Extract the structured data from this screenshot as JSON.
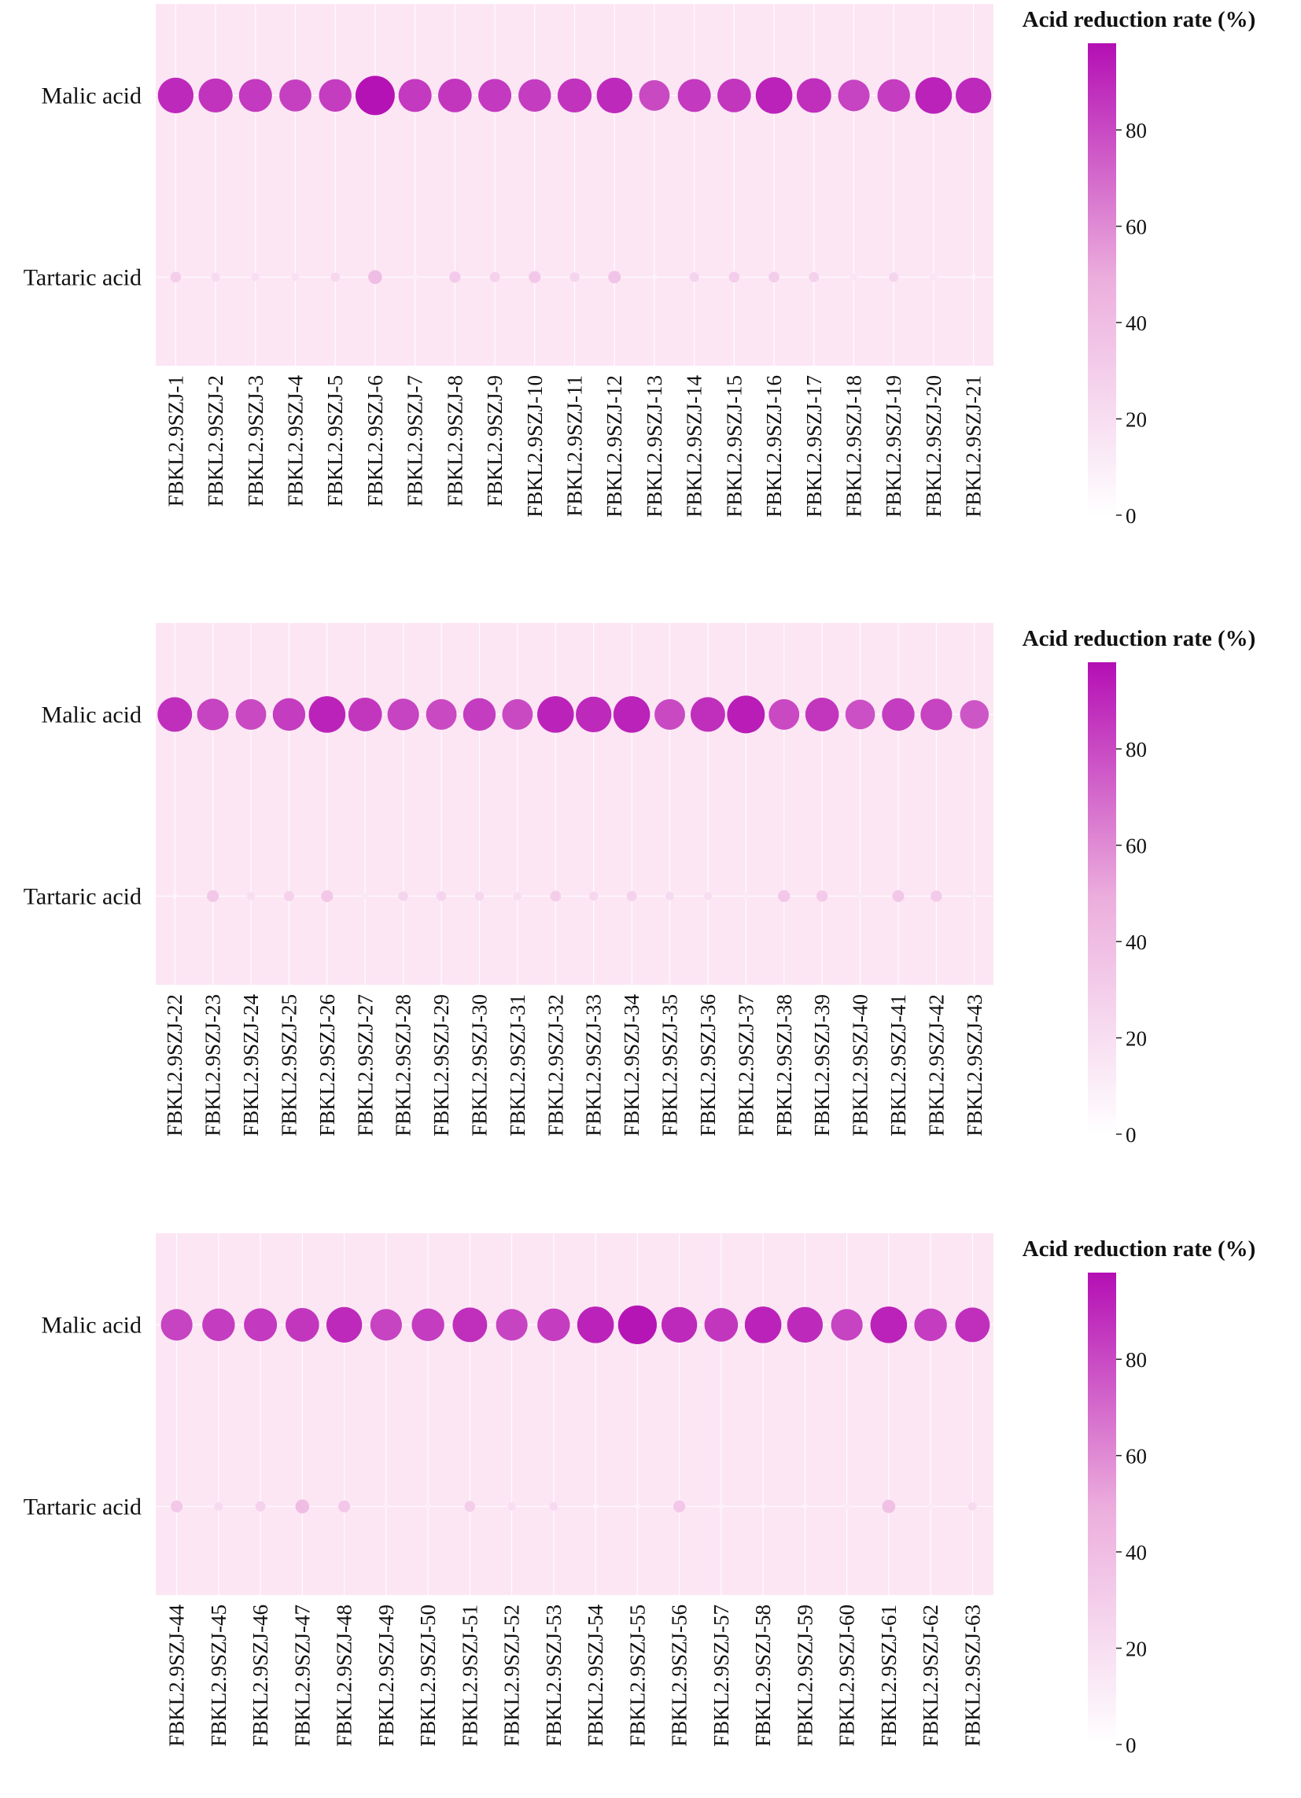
{
  "chart_data": [
    {
      "type": "scatter",
      "categories": [
        "FBKL2.9SZJ-1",
        "FBKL2.9SZJ-2",
        "FBKL2.9SZJ-3",
        "FBKL2.9SZJ-4",
        "FBKL2.9SZJ-5",
        "FBKL2.9SZJ-6",
        "FBKL2.9SZJ-7",
        "FBKL2.9SZJ-8",
        "FBKL2.9SZJ-9",
        "FBKL2.9SZJ-10",
        "FBKL2.9SZJ-11",
        "FBKL2.9SZJ-12",
        "FBKL2.9SZJ-13",
        "FBKL2.9SZJ-14",
        "FBKL2.9SZJ-15",
        "FBKL2.9SZJ-16",
        "FBKL2.9SZJ-17",
        "FBKL2.9SZJ-18",
        "FBKL2.9SZJ-19",
        "FBKL2.9SZJ-20",
        "FBKL2.9SZJ-21"
      ],
      "rows": [
        "Malic acid",
        "Tartaric acid"
      ],
      "series": [
        {
          "name": "Malic acid",
          "values": [
            90,
            87,
            85,
            83,
            84,
            97,
            85,
            86,
            85,
            84,
            87,
            90,
            80,
            85,
            86,
            92,
            88,
            82,
            84,
            92,
            90
          ]
        },
        {
          "name": "Tartaric acid",
          "values": [
            30,
            22,
            20,
            18,
            24,
            40,
            10,
            32,
            28,
            34,
            26,
            36,
            8,
            26,
            30,
            30,
            28,
            16,
            26,
            16,
            6
          ]
        }
      ],
      "colorbar": {
        "label": "Acid reduction rate (%)",
        "ticks": [
          0,
          20,
          40,
          60,
          80
        ],
        "range": [
          0,
          98
        ]
      },
      "colors": {
        "high": "#b40fb4",
        "low": "#ffffff",
        "background": "#fce6f4"
      }
    },
    {
      "type": "scatter",
      "categories": [
        "FBKL2.9SZJ-22",
        "FBKL2.9SZJ-23",
        "FBKL2.9SZJ-24",
        "FBKL2.9SZJ-25",
        "FBKL2.9SZJ-26",
        "FBKL2.9SZJ-27",
        "FBKL2.9SZJ-28",
        "FBKL2.9SZJ-29",
        "FBKL2.9SZJ-30",
        "FBKL2.9SZJ-31",
        "FBKL2.9SZJ-32",
        "FBKL2.9SZJ-33",
        "FBKL2.9SZJ-34",
        "FBKL2.9SZJ-35",
        "FBKL2.9SZJ-36",
        "FBKL2.9SZJ-37",
        "FBKL2.9SZJ-38",
        "FBKL2.9SZJ-39",
        "FBKL2.9SZJ-40",
        "FBKL2.9SZJ-41",
        "FBKL2.9SZJ-42",
        "FBKL2.9SZJ-43"
      ],
      "rows": [
        "Malic acid",
        "Tartaric acid"
      ],
      "series": [
        {
          "name": "Malic acid",
          "values": [
            88,
            82,
            80,
            84,
            92,
            86,
            82,
            80,
            84,
            80,
            92,
            90,
            92,
            80,
            88,
            94,
            80,
            86,
            78,
            84,
            82,
            76
          ]
        },
        {
          "name": "Tartaric acid",
          "values": [
            6,
            34,
            20,
            28,
            34,
            14,
            26,
            26,
            24,
            20,
            30,
            24,
            28,
            22,
            20,
            12,
            34,
            32,
            12,
            34,
            32,
            12
          ]
        }
      ],
      "colorbar": {
        "label": "Acid reduction rate (%)",
        "ticks": [
          0,
          20,
          40,
          60,
          80
        ],
        "range": [
          0,
          98
        ]
      },
      "colors": {
        "high": "#b40fb4",
        "low": "#ffffff",
        "background": "#fce6f4"
      }
    },
    {
      "type": "scatter",
      "categories": [
        "FBKL2.9SZJ-44",
        "FBKL2.9SZJ-45",
        "FBKL2.9SZJ-46",
        "FBKL2.9SZJ-47",
        "FBKL2.9SZJ-48",
        "FBKL2.9SZJ-49",
        "FBKL2.9SZJ-50",
        "FBKL2.9SZJ-51",
        "FBKL2.9SZJ-52",
        "FBKL2.9SZJ-53",
        "FBKL2.9SZJ-54",
        "FBKL2.9SZJ-55",
        "FBKL2.9SZJ-56",
        "FBKL2.9SZJ-57",
        "FBKL2.9SZJ-58",
        "FBKL2.9SZJ-59",
        "FBKL2.9SZJ-60",
        "FBKL2.9SZJ-61",
        "FBKL2.9SZJ-62",
        "FBKL2.9SZJ-63"
      ],
      "rows": [
        "Malic acid",
        "Tartaric acid"
      ],
      "series": [
        {
          "name": "Malic acid",
          "values": [
            82,
            84,
            85,
            86,
            90,
            82,
            84,
            88,
            82,
            84,
            92,
            96,
            90,
            86,
            92,
            90,
            82,
            92,
            84,
            88
          ]
        },
        {
          "name": "Tartaric acid",
          "values": [
            34,
            22,
            28,
            40,
            34,
            10,
            10,
            30,
            20,
            22,
            6,
            8,
            34,
            8,
            8,
            8,
            12,
            38,
            12,
            22
          ]
        }
      ],
      "colorbar": {
        "label": "Acid reduction rate (%)",
        "ticks": [
          0,
          20,
          40,
          60,
          80
        ],
        "range": [
          0,
          98
        ]
      },
      "colors": {
        "high": "#b40fb4",
        "low": "#ffffff",
        "background": "#fce6f4"
      }
    }
  ]
}
